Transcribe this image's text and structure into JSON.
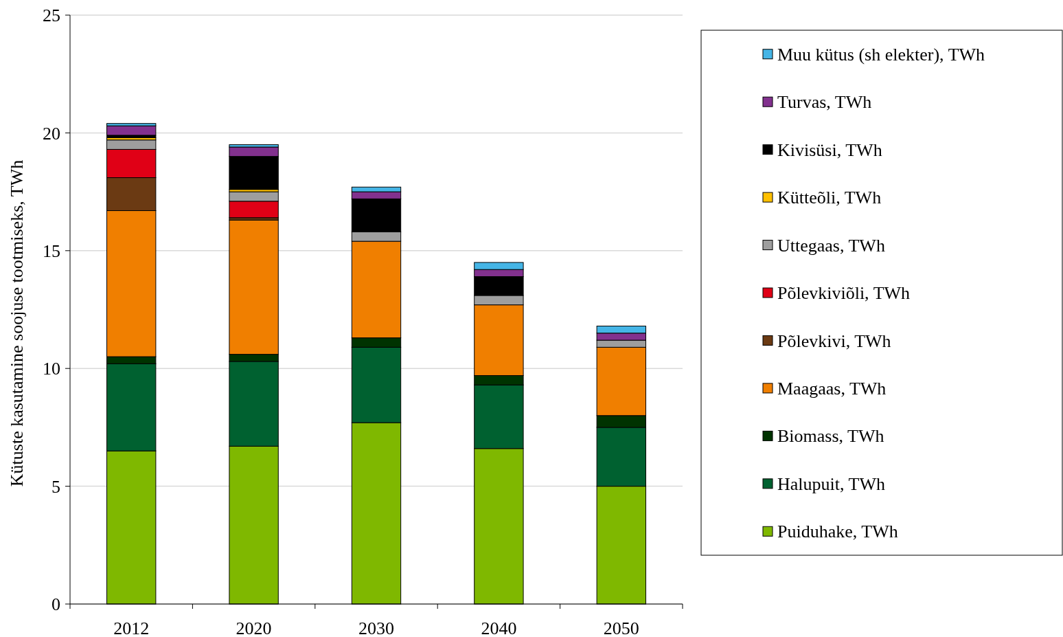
{
  "chart_data": {
    "type": "bar",
    "stacked": true,
    "ylabel": "Kütuste kasutamine soojuse tootmiseks, TWh",
    "categories": [
      "2012",
      "2020",
      "2030",
      "2040",
      "2050"
    ],
    "ylim": [
      0,
      25
    ],
    "yticks": [
      0,
      5,
      10,
      15,
      20,
      25
    ],
    "grid": "y",
    "legend": "right",
    "series": [
      {
        "name": "Puiduhake, TWh",
        "color": "#7fb800",
        "values": [
          6.5,
          6.7,
          7.7,
          6.6,
          5.0
        ]
      },
      {
        "name": "Halupuit, TWh",
        "color": "#006130",
        "values": [
          3.7,
          3.6,
          3.2,
          2.7,
          2.5
        ]
      },
      {
        "name": "Biomass, TWh",
        "color": "#003300",
        "values": [
          0.3,
          0.3,
          0.4,
          0.4,
          0.5
        ]
      },
      {
        "name": "Maagaas, TWh",
        "color": "#f07f00",
        "values": [
          6.2,
          5.7,
          4.1,
          3.0,
          2.9
        ]
      },
      {
        "name": "Põlevkivi, TWh",
        "color": "#6b3a13",
        "values": [
          1.4,
          0.1,
          0,
          0,
          0
        ]
      },
      {
        "name": "Põlevkiviõli, TWh",
        "color": "#e00016",
        "values": [
          1.2,
          0.7,
          0,
          0,
          0
        ]
      },
      {
        "name": "Uttegaas, TWh",
        "color": "#9e9e9e",
        "values": [
          0.4,
          0.4,
          0.4,
          0.4,
          0.3
        ]
      },
      {
        "name": "Kütteõli, TWh",
        "color": "#ffc000",
        "values": [
          0.1,
          0.1,
          0,
          0,
          0
        ]
      },
      {
        "name": "Kivisüsi, TWh",
        "color": "#000000",
        "values": [
          0.1,
          1.4,
          1.4,
          0.8,
          0
        ]
      },
      {
        "name": "Turvas, TWh",
        "color": "#82318e",
        "values": [
          0.4,
          0.4,
          0.3,
          0.3,
          0.3
        ]
      },
      {
        "name": "Muu kütus (sh elekter), TWh",
        "color": "#45b5e6",
        "values": [
          0.1,
          0.1,
          0.2,
          0.3,
          0.3
        ]
      }
    ]
  }
}
